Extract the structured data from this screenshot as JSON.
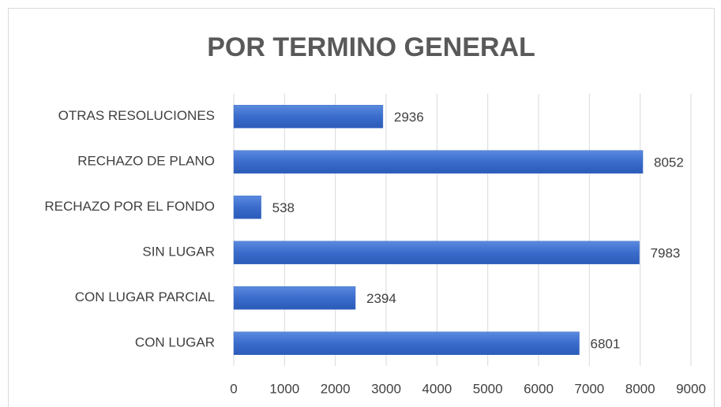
{
  "chart_data": {
    "type": "bar",
    "orientation": "horizontal",
    "title": "POR TERMINO GENERAL",
    "categories": [
      "OTRAS RESOLUCIONES",
      "RECHAZO DE PLANO",
      "RECHAZO POR EL FONDO",
      "SIN LUGAR",
      "CON LUGAR PARCIAL",
      "CON LUGAR"
    ],
    "values": [
      2936,
      8052,
      538,
      7983,
      2394,
      6801
    ],
    "color": "#4472c4",
    "xlim": [
      0,
      9000
    ],
    "xticks": [
      0,
      1000,
      2000,
      3000,
      4000,
      5000,
      6000,
      7000,
      8000,
      9000
    ],
    "grid": true
  }
}
